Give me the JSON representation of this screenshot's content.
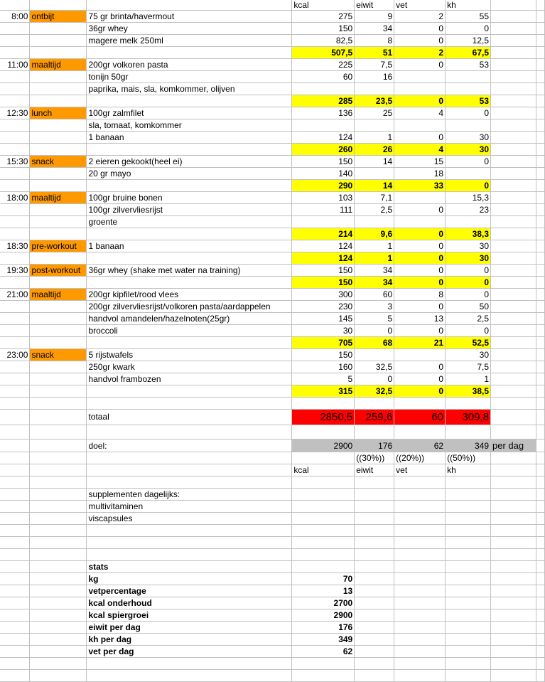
{
  "colors": {
    "meal": "#ff9900",
    "subtotal": "#ffff00",
    "total": "#ff0000",
    "goal": "#c0c0c0",
    "grid": "#c0c0c0"
  },
  "rows": [
    {
      "style": "first",
      "cells": [
        "",
        "",
        "",
        "kcal",
        "eiwit",
        "vet",
        "kh",
        ""
      ]
    },
    {
      "style": "",
      "cells": [
        "8:00",
        "ontbijt",
        "75 gr brinta/havermout",
        "275",
        "9",
        "2",
        "55",
        ""
      ]
    },
    {
      "style": "",
      "cells": [
        "",
        "",
        "36gr whey",
        "150",
        "34",
        "0",
        "0",
        ""
      ]
    },
    {
      "style": "",
      "cells": [
        "",
        "",
        "magere melk 250ml",
        "82,5",
        "8",
        "0",
        "12,5",
        ""
      ]
    },
    {
      "style": "total",
      "cells": [
        "",
        "",
        "",
        "507,5",
        "51",
        "2",
        "67,5",
        ""
      ]
    },
    {
      "style": "",
      "cells": [
        "11:00",
        "maaltijd",
        "200gr volkoren pasta",
        "225",
        "7,5",
        "0",
        "53",
        ""
      ]
    },
    {
      "style": "",
      "cells": [
        "",
        "",
        "tonijn 50gr",
        "60",
        "16",
        "",
        "",
        ""
      ]
    },
    {
      "style": "",
      "cells": [
        "",
        "",
        "paprika, mais, sla, komkommer, olijven",
        "",
        "",
        "",
        "",
        ""
      ]
    },
    {
      "style": "total",
      "cells": [
        "",
        "",
        "",
        "285",
        "23,5",
        "0",
        "53",
        ""
      ]
    },
    {
      "style": "",
      "cells": [
        "12:30",
        "lunch",
        "100gr zalmfilet",
        "136",
        "25",
        "4",
        "0",
        ""
      ]
    },
    {
      "style": "",
      "cells": [
        "",
        "",
        "sla, tomaat, komkommer",
        "",
        "",
        "",
        "",
        ""
      ]
    },
    {
      "style": "",
      "cells": [
        "",
        "",
        "1 banaan",
        "124",
        "1",
        "0",
        "30",
        ""
      ]
    },
    {
      "style": "total",
      "cells": [
        "",
        "",
        "",
        "260",
        "26",
        "4",
        "30",
        ""
      ]
    },
    {
      "style": "",
      "cells": [
        "15:30",
        "snack",
        "2 eieren gekookt(heel ei)",
        "150",
        "14",
        "15",
        "0",
        ""
      ]
    },
    {
      "style": "",
      "cells": [
        "",
        "",
        "20 gr mayo",
        "140",
        "",
        "18",
        "",
        ""
      ]
    },
    {
      "style": "total",
      "cells": [
        "",
        "",
        "",
        "290",
        "14",
        "33",
        "0",
        ""
      ]
    },
    {
      "style": "",
      "cells": [
        "18:00",
        "maaltijd",
        "100gr bruine bonen",
        "103",
        "7,1",
        "",
        "15,3",
        ""
      ]
    },
    {
      "style": "",
      "cells": [
        "",
        "",
        "100gr zilvervliesrijst",
        "111",
        "2,5",
        "0",
        "23",
        ""
      ]
    },
    {
      "style": "",
      "cells": [
        "",
        "",
        "groente",
        "",
        "",
        "",
        "",
        ""
      ]
    },
    {
      "style": "total",
      "cells": [
        "",
        "",
        "",
        "214",
        "9,6",
        "0",
        "38,3",
        ""
      ]
    },
    {
      "style": "",
      "cells": [
        "18:30",
        "pre-workout",
        "1 banaan",
        "124",
        "1",
        "0",
        "30",
        ""
      ]
    },
    {
      "style": "total",
      "cells": [
        "",
        "",
        "",
        "124",
        "1",
        "0",
        "30",
        ""
      ]
    },
    {
      "style": "",
      "cells": [
        "19:30",
        "post-workout",
        "36gr whey (shake met water na training)",
        "150",
        "34",
        "0",
        "0",
        ""
      ]
    },
    {
      "style": "total",
      "cells": [
        "",
        "",
        "",
        "150",
        "34",
        "0",
        "0",
        ""
      ]
    },
    {
      "style": "",
      "cells": [
        "21:00",
        "maaltijd",
        "200gr kipfilet/rood vlees",
        "300",
        "60",
        "8",
        "0",
        ""
      ]
    },
    {
      "style": "",
      "cells": [
        "",
        "",
        "200gr zilvervliesrijst/volkoren pasta/aardappelen",
        "230",
        "3",
        "0",
        "50",
        ""
      ]
    },
    {
      "style": "",
      "cells": [
        "",
        "",
        "handvol amandelen/hazelnoten(25gr)",
        "145",
        "5",
        "13",
        "2,5",
        ""
      ]
    },
    {
      "style": "",
      "cells": [
        "",
        "",
        "broccoli",
        "30",
        "0",
        "0",
        "0",
        ""
      ]
    },
    {
      "style": "total",
      "cells": [
        "",
        "",
        "",
        "705",
        "68",
        "21",
        "52,5",
        ""
      ]
    },
    {
      "style": "",
      "cells": [
        "23:00",
        "snack",
        "5 rijstwafels",
        "150",
        "",
        "",
        "30",
        ""
      ]
    },
    {
      "style": "",
      "cells": [
        "",
        "",
        "250gr kwark",
        "160",
        "32,5",
        "0",
        "7,5",
        ""
      ]
    },
    {
      "style": "",
      "cells": [
        "",
        "",
        "handvol frambozen",
        "5",
        "0",
        "0",
        "1",
        ""
      ]
    },
    {
      "style": "total",
      "cells": [
        "",
        "",
        "",
        "315",
        "32,5",
        "0",
        "38,5",
        ""
      ]
    },
    {
      "style": "",
      "cells": [
        "",
        "",
        "",
        "",
        "",
        "",
        "",
        ""
      ]
    },
    {
      "style": "grand",
      "cells": [
        "",
        "",
        "totaal",
        "2850,5",
        "259,6",
        "60",
        "309,8",
        ""
      ]
    },
    {
      "style": "after",
      "cells": [
        "",
        "",
        "",
        "",
        "",
        "",
        "",
        ""
      ]
    },
    {
      "style": "goal",
      "cells": [
        "",
        "",
        "doel:",
        "2900",
        "176",
        "62",
        "349",
        "per dag"
      ]
    },
    {
      "style": "",
      "cells": [
        "",
        "",
        "",
        "",
        "((30%))",
        "((20%))",
        "((50%))",
        ""
      ]
    },
    {
      "style": "",
      "cells": [
        "",
        "",
        "",
        "kcal",
        "eiwit",
        "vet",
        "kh",
        ""
      ]
    },
    {
      "style": "",
      "cells": [
        "",
        "",
        "",
        "",
        "",
        "",
        "",
        ""
      ]
    },
    {
      "style": "",
      "cells": [
        "",
        "",
        "supplementen dagelijks:",
        "",
        "",
        "",
        "",
        ""
      ]
    },
    {
      "style": "",
      "cells": [
        "",
        "",
        "multivitaminen",
        "",
        "",
        "",
        "",
        ""
      ]
    },
    {
      "style": "",
      "cells": [
        "",
        "",
        "viscapsules",
        "",
        "",
        "",
        "",
        ""
      ]
    },
    {
      "style": "",
      "cells": [
        "",
        "",
        "",
        "",
        "",
        "",
        "",
        ""
      ]
    },
    {
      "style": "",
      "cells": [
        "",
        "",
        "",
        "",
        "",
        "",
        "",
        ""
      ]
    },
    {
      "style": "",
      "cells": [
        "",
        "",
        "",
        "",
        "",
        "",
        "",
        ""
      ]
    },
    {
      "style": "stats",
      "cells": [
        "",
        "",
        "stats",
        "",
        "",
        "",
        "",
        ""
      ]
    },
    {
      "style": "stats",
      "cells": [
        "",
        "",
        "kg",
        "70",
        "",
        "",
        "",
        ""
      ]
    },
    {
      "style": "stats",
      "cells": [
        "",
        "",
        "vetpercentage",
        "13",
        "",
        "",
        "",
        ""
      ]
    },
    {
      "style": "stats",
      "cells": [
        "",
        "",
        "kcal onderhoud",
        "2700",
        "",
        "",
        "",
        ""
      ]
    },
    {
      "style": "stats",
      "cells": [
        "",
        "",
        "kcal spiergroei",
        "2900",
        "",
        "",
        "",
        ""
      ]
    },
    {
      "style": "stats",
      "cells": [
        "",
        "",
        "eiwit per dag",
        "176",
        "",
        "",
        "",
        ""
      ]
    },
    {
      "style": "stats",
      "cells": [
        "",
        "",
        "kh per dag",
        "349",
        "",
        "",
        "",
        ""
      ]
    },
    {
      "style": "stats",
      "cells": [
        "",
        "",
        "vet per dag",
        "62",
        "",
        "",
        "",
        ""
      ]
    },
    {
      "style": "",
      "cells": [
        "",
        "",
        "",
        "",
        "",
        "",
        "",
        ""
      ]
    },
    {
      "style": "",
      "cells": [
        "",
        "",
        "",
        "",
        "",
        "",
        "",
        ""
      ]
    }
  ]
}
